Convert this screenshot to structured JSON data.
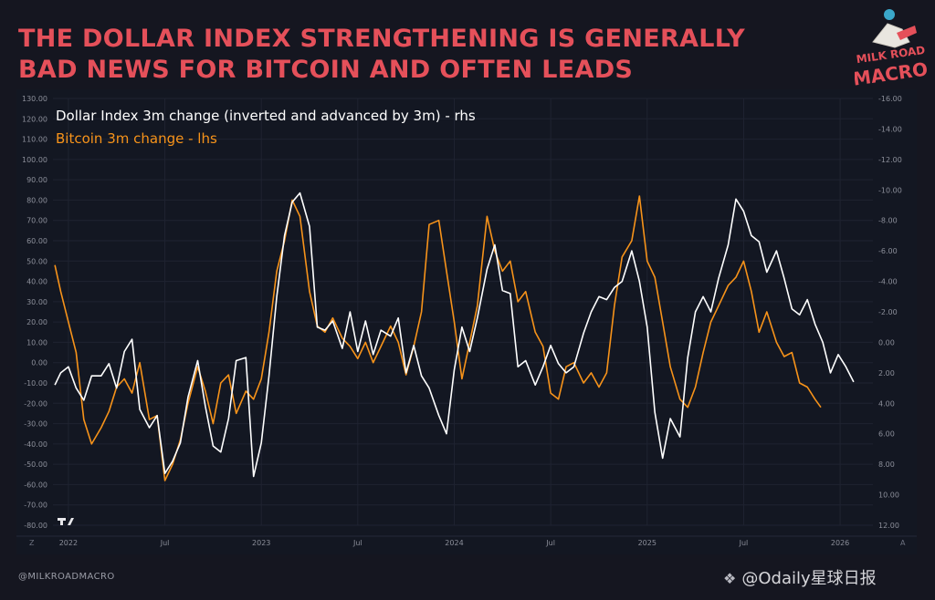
{
  "headline": {
    "line1": "THE DOLLAR INDEX STRENGTHENING IS GENERALLY",
    "line2": "BAD NEWS FOR BITCOIN AND OFTEN LEADS"
  },
  "logo": {
    "line1": "MILK ROAD",
    "line2": "MACRO"
  },
  "footer": {
    "handle": "@MILKROADMACRO",
    "watermark": "@Odaily星球日报"
  },
  "colors": {
    "background": "#151620",
    "plot": "#131722",
    "accent_red": "#e5505a",
    "bitcoin": "#f7931a",
    "dollar": "#ffffff",
    "axis_text": "#8c8f9a"
  },
  "chart_data": {
    "type": "line",
    "legend": [
      {
        "label": "Dollar Index 3m change (inverted and advanced by 3m) - rhs",
        "color": "#ffffff"
      },
      {
        "label": "Bitcoin 3m change - lhs",
        "color": "#f7931a"
      }
    ],
    "left_axis": {
      "min": -80,
      "max": 130,
      "ticks": [
        "130.00",
        "120.00",
        "110.00",
        "100.00",
        "90.00",
        "80.00",
        "70.00",
        "60.00",
        "50.00",
        "40.00",
        "30.00",
        "20.00",
        "10.00",
        "0.00",
        "-10.00",
        "-20.00",
        "-30.00",
        "-40.00",
        "-50.00",
        "-60.00",
        "-70.00",
        "-80.00"
      ]
    },
    "right_axis": {
      "inverted": true,
      "min": -16,
      "max": 12,
      "ticks": [
        "-16.00",
        "-14.00",
        "-12.00",
        "-10.00",
        "-8.00",
        "-6.00",
        "-4.00",
        "-2.00",
        "0.00",
        "2.00",
        "4.00",
        "6.00",
        "8.00",
        "10.00",
        "12.00"
      ]
    },
    "x_axis": {
      "start": 2021.92,
      "end": 2026.17,
      "ticks": [
        {
          "t": 2022.0,
          "label": "2022"
        },
        {
          "t": 2022.5,
          "label": "Jul"
        },
        {
          "t": 2023.0,
          "label": "2023"
        },
        {
          "t": 2023.5,
          "label": "Jul"
        },
        {
          "t": 2024.0,
          "label": "2024"
        },
        {
          "t": 2024.5,
          "label": "Jul"
        },
        {
          "t": 2025.0,
          "label": "2025"
        },
        {
          "t": 2025.5,
          "label": "Jul"
        },
        {
          "t": 2026.0,
          "label": "2026"
        }
      ]
    },
    "series": [
      {
        "name": "Bitcoin 3m change - lhs",
        "axis": "left",
        "color": "#f7931a",
        "x": [
          2021.93,
          2021.96,
          2022.0,
          2022.04,
          2022.08,
          2022.12,
          2022.17,
          2022.21,
          2022.25,
          2022.29,
          2022.33,
          2022.37,
          2022.42,
          2022.46,
          2022.5,
          2022.54,
          2022.58,
          2022.62,
          2022.67,
          2022.71,
          2022.75,
          2022.79,
          2022.83,
          2022.87,
          2022.92,
          2022.96,
          2023.0,
          2023.04,
          2023.08,
          2023.12,
          2023.16,
          2023.2,
          2023.25,
          2023.29,
          2023.33,
          2023.37,
          2023.42,
          2023.46,
          2023.5,
          2023.54,
          2023.58,
          2023.62,
          2023.67,
          2023.71,
          2023.75,
          2023.79,
          2023.83,
          2023.87,
          2023.92,
          2023.96,
          2024.0,
          2024.04,
          2024.08,
          2024.12,
          2024.17,
          2024.21,
          2024.25,
          2024.29,
          2024.33,
          2024.37,
          2024.42,
          2024.46,
          2024.5,
          2024.54,
          2024.58,
          2024.62,
          2024.67,
          2024.71,
          2024.75,
          2024.79,
          2024.83,
          2024.87,
          2024.92,
          2024.96,
          2025.0,
          2025.04,
          2025.08,
          2025.12,
          2025.17,
          2025.21,
          2025.25,
          2025.29,
          2025.33,
          2025.37,
          2025.42,
          2025.46,
          2025.5,
          2025.54,
          2025.58,
          2025.62,
          2025.67,
          2025.71,
          2025.75,
          2025.79,
          2025.83,
          2025.87,
          2025.9
        ],
        "y": [
          48,
          35,
          20,
          5,
          -28,
          -40,
          -32,
          -24,
          -12,
          -8,
          -15,
          0,
          -28,
          -26,
          -58,
          -50,
          -38,
          -20,
          -2,
          -14,
          -30,
          -10,
          -6,
          -25,
          -14,
          -18,
          -8,
          15,
          45,
          60,
          80,
          72,
          35,
          18,
          15,
          22,
          12,
          8,
          2,
          10,
          0,
          8,
          18,
          10,
          -6,
          8,
          25,
          68,
          70,
          45,
          20,
          -8,
          10,
          28,
          72,
          55,
          45,
          50,
          30,
          35,
          15,
          8,
          -15,
          -18,
          -2,
          0,
          -10,
          -5,
          -12,
          -5,
          28,
          52,
          60,
          82,
          50,
          42,
          20,
          -2,
          -18,
          -22,
          -12,
          5,
          20,
          28,
          38,
          42,
          50,
          35,
          15,
          25,
          10,
          3,
          5,
          -10,
          -12,
          -18,
          -22
        ]
      },
      {
        "name": "Dollar Index 3m change (inverted and advanced by 3m) - rhs",
        "axis": "right",
        "color": "#ffffff",
        "x": [
          2021.93,
          2021.96,
          2022.0,
          2022.04,
          2022.08,
          2022.12,
          2022.17,
          2022.21,
          2022.25,
          2022.29,
          2022.33,
          2022.37,
          2022.42,
          2022.46,
          2022.5,
          2022.54,
          2022.58,
          2022.62,
          2022.67,
          2022.71,
          2022.75,
          2022.79,
          2022.83,
          2022.87,
          2022.92,
          2022.96,
          2023.0,
          2023.04,
          2023.08,
          2023.12,
          2023.16,
          2023.2,
          2023.25,
          2023.29,
          2023.33,
          2023.37,
          2023.42,
          2023.46,
          2023.5,
          2023.54,
          2023.58,
          2023.62,
          2023.67,
          2023.71,
          2023.75,
          2023.79,
          2023.83,
          2023.87,
          2023.92,
          2023.96,
          2024.0,
          2024.04,
          2024.08,
          2024.12,
          2024.17,
          2024.21,
          2024.25,
          2024.29,
          2024.33,
          2024.37,
          2024.42,
          2024.46,
          2024.5,
          2024.54,
          2024.58,
          2024.62,
          2024.67,
          2024.71,
          2024.75,
          2024.79,
          2024.83,
          2024.87,
          2024.92,
          2024.96,
          2025.0,
          2025.04,
          2025.08,
          2025.12,
          2025.17,
          2025.21,
          2025.25,
          2025.29,
          2025.33,
          2025.37,
          2025.42,
          2025.46,
          2025.5,
          2025.54,
          2025.58,
          2025.62,
          2025.67,
          2025.71,
          2025.75,
          2025.79,
          2025.83,
          2025.87,
          2025.91,
          2025.95,
          2025.99,
          2026.03,
          2026.07
        ],
        "y": [
          2.8,
          2.0,
          1.6,
          3.0,
          3.8,
          2.2,
          2.2,
          1.4,
          3.0,
          0.6,
          -0.2,
          4.4,
          5.6,
          4.8,
          8.6,
          7.8,
          6.6,
          3.6,
          1.2,
          4.2,
          6.8,
          7.2,
          5.0,
          1.2,
          1.0,
          8.8,
          6.6,
          2.2,
          -3.0,
          -7.0,
          -9.2,
          -9.8,
          -7.6,
          -1.0,
          -0.8,
          -1.4,
          0.4,
          -2.0,
          0.6,
          -1.4,
          0.8,
          -0.8,
          -0.4,
          -1.6,
          2.0,
          0.2,
          2.2,
          3.0,
          4.8,
          6.0,
          1.8,
          -1.0,
          0.6,
          -1.6,
          -4.8,
          -6.4,
          -3.4,
          -3.2,
          1.6,
          1.2,
          2.8,
          1.6,
          0.2,
          1.4,
          2.0,
          1.6,
          -0.6,
          -2.0,
          -3.0,
          -2.8,
          -3.6,
          -4.0,
          -6.0,
          -4.0,
          -1.0,
          4.6,
          7.6,
          5.0,
          6.2,
          1.0,
          -2.0,
          -3.0,
          -2.0,
          -4.2,
          -6.4,
          -9.4,
          -8.6,
          -7.0,
          -6.6,
          -4.6,
          -6.0,
          -4.2,
          -2.2,
          -1.8,
          -2.8,
          -1.2,
          0.0,
          2.0,
          0.8,
          1.6,
          2.6
        ]
      }
    ]
  }
}
